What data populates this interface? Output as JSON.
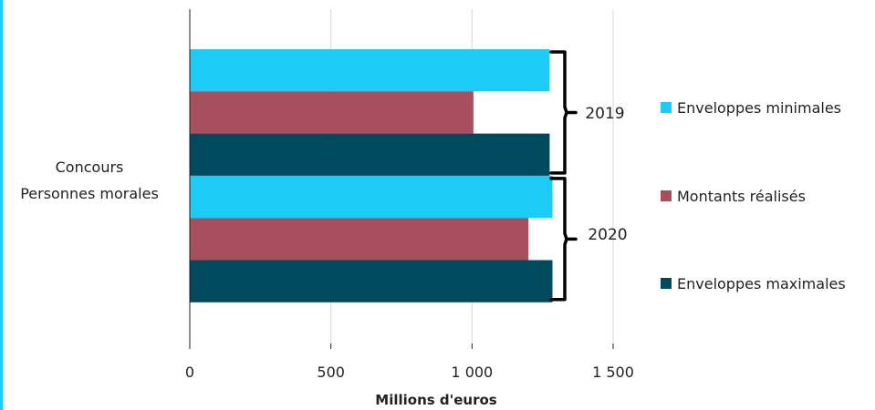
{
  "chart_data": {
    "type": "bar",
    "orientation": "horizontal",
    "category": [
      "Concours",
      "Personnes morales"
    ],
    "groups": [
      "2019",
      "2020"
    ],
    "series": [
      {
        "name": "Enveloppes minimales",
        "color": "#1ccbf6",
        "values": [
          1275,
          1285
        ]
      },
      {
        "name": "Montants réalisés",
        "color": "#a84f5e",
        "values": [
          1005,
          1200
        ]
      },
      {
        "name": "Enveloppes maximales",
        "color": "#004a5e",
        "values": [
          1275,
          1285
        ]
      }
    ],
    "xlabel": "Millions d'euros",
    "xlim": [
      0,
      1500
    ],
    "xticks": [
      0,
      500,
      1000,
      1500
    ],
    "xtick_labels": [
      "0",
      "500",
      "1 000",
      "1 500"
    ],
    "grid": "vertical",
    "legend_position": "right"
  },
  "colors": {
    "frame_accent": "#1ccbf6",
    "gridline": "#d9d9d9",
    "axis": "#222222"
  }
}
